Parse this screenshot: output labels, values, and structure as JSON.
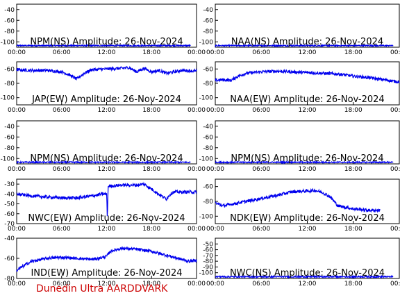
{
  "footer": "Dunedin Ultra AARDDVARK",
  "colors": {
    "trace": "#0000ee",
    "footer": "#cc0000",
    "axis": "#000000"
  },
  "x_ticks": [
    "00:00",
    "06:00",
    "12:00",
    "18:00",
    "00:00"
  ],
  "chart_data": [
    {
      "type": "line",
      "title": "NPM(NS) Amplitude: 26-Nov-2024",
      "xlabel": "",
      "ylabel": "",
      "x_range_hours": [
        0,
        24
      ],
      "ylim": [
        -110,
        -30
      ],
      "y_ticks": [
        -40,
        -60,
        -80,
        -100
      ],
      "grid": false,
      "series": [
        {
          "x_hours": [
            0,
            6,
            12,
            18,
            23.2
          ],
          "values": [
            -107,
            -107,
            -107,
            -107,
            -107
          ]
        }
      ]
    },
    {
      "type": "line",
      "title": "NAA(NS) Amplitude: 26-Nov-2024",
      "xlabel": "",
      "ylabel": "",
      "x_range_hours": [
        0,
        24
      ],
      "ylim": [
        -110,
        -30
      ],
      "y_ticks": [
        -40,
        -60,
        -80,
        -100
      ],
      "grid": false,
      "series": [
        {
          "x_hours": [
            0,
            6,
            12,
            18,
            23.2
          ],
          "values": [
            -107,
            -107,
            -107,
            -107,
            -107
          ]
        }
      ]
    },
    {
      "type": "line",
      "title": "JAP(EW) Amplitude: 26-Nov-2024",
      "xlabel": "",
      "ylabel": "",
      "x_range_hours": [
        0,
        24
      ],
      "ylim": [
        -110,
        -50
      ],
      "y_ticks": [
        -60,
        -80,
        -100
      ],
      "grid": false,
      "series": [
        {
          "x_hours": [
            0,
            2,
            4,
            6,
            7,
            8,
            9,
            10,
            12,
            14,
            15,
            16,
            17,
            18,
            19,
            20,
            22,
            24
          ],
          "values": [
            -61,
            -62,
            -62,
            -64,
            -68,
            -74,
            -66,
            -61,
            -60,
            -59,
            -58,
            -64,
            -59,
            -64,
            -62,
            -66,
            -62,
            -63
          ]
        }
      ]
    },
    {
      "type": "line",
      "title": "NAA(EW) Amplitude: 26-Nov-2024",
      "xlabel": "",
      "ylabel": "",
      "x_range_hours": [
        0,
        24
      ],
      "ylim": [
        -110,
        -50
      ],
      "y_ticks": [
        -60,
        -80,
        -100
      ],
      "grid": false,
      "series": [
        {
          "x_hours": [
            0,
            1,
            2,
            3,
            4,
            6,
            8,
            10,
            12,
            14,
            16,
            18,
            20,
            22,
            24
          ],
          "values": [
            -76,
            -75,
            -76,
            -70,
            -66,
            -64,
            -63,
            -64,
            -65,
            -66,
            -67,
            -70,
            -72,
            -75,
            -78
          ]
        }
      ]
    },
    {
      "type": "line",
      "title": "NPM(NS) Amplitude: 26-Nov-2024",
      "xlabel": "",
      "ylabel": "",
      "x_range_hours": [
        0,
        24
      ],
      "ylim": [
        -110,
        -30
      ],
      "y_ticks": [
        -40,
        -60,
        -80,
        -100
      ],
      "grid": false,
      "series": [
        {
          "x_hours": [
            0,
            6,
            12,
            18,
            23.2
          ],
          "values": [
            -107,
            -107,
            -107,
            -107,
            -107
          ]
        }
      ]
    },
    {
      "type": "line",
      "title": "NPM(NS) Amplitude: 26-Nov-2024",
      "xlabel": "",
      "ylabel": "",
      "x_range_hours": [
        0,
        24
      ],
      "ylim": [
        -110,
        -30
      ],
      "y_ticks": [
        -40,
        -60,
        -80,
        -100
      ],
      "grid": false,
      "series": [
        {
          "x_hours": [
            0,
            6,
            12,
            18,
            23.2
          ],
          "values": [
            -107,
            -107,
            -107,
            -107,
            -107
          ]
        }
      ]
    },
    {
      "type": "line",
      "title": "NWC(EW) Amplitude: 26-Nov-2024",
      "xlabel": "",
      "ylabel": "",
      "x_range_hours": [
        0,
        24
      ],
      "ylim": [
        -70,
        -25
      ],
      "y_ticks": [
        -30,
        -40,
        -50,
        -60,
        -70
      ],
      "grid": false,
      "series": [
        {
          "x_hours": [
            0,
            2,
            4,
            6,
            8,
            10,
            11.5,
            12,
            12.1,
            12.2,
            12.3,
            14,
            16,
            17,
            18,
            19.3,
            20,
            20.5,
            21,
            22,
            24
          ],
          "values": [
            -40,
            -42,
            -43,
            -44,
            -44,
            -42,
            -40,
            -40,
            -65,
            -33,
            -32,
            -31,
            -31,
            -30,
            -35,
            -42,
            -45,
            -40,
            -38,
            -38,
            -38
          ]
        }
      ]
    },
    {
      "type": "line",
      "title": "NDK(EW) Amplitude: 26-Nov-2024",
      "xlabel": "",
      "ylabel": "",
      "x_range_hours": [
        0,
        24
      ],
      "ylim": [
        -110,
        -50
      ],
      "y_ticks": [
        -60,
        -80,
        -100
      ],
      "grid": false,
      "series": [
        {
          "x_hours": [
            0,
            1,
            2,
            3,
            4,
            6,
            8,
            10,
            12,
            13,
            14,
            15,
            16,
            18,
            20,
            21.5
          ],
          "values": [
            -82,
            -86,
            -84,
            -82,
            -80,
            -76,
            -72,
            -67,
            -66,
            -65,
            -68,
            -74,
            -86,
            -90,
            -92,
            -92
          ]
        }
      ]
    },
    {
      "type": "line",
      "title": "IND(EW) Amplitude: 26-Nov-2024",
      "xlabel": "",
      "ylabel": "",
      "x_range_hours": [
        0,
        24
      ],
      "ylim": [
        -80,
        -40
      ],
      "y_ticks": [
        -40,
        -60,
        -80
      ],
      "grid": false,
      "series": [
        {
          "x_hours": [
            0,
            1,
            2,
            4,
            6,
            8,
            10,
            11,
            12,
            12.5,
            14,
            16,
            18,
            20,
            22,
            23,
            24
          ],
          "values": [
            -72,
            -67,
            -63,
            -60,
            -59,
            -60,
            -61,
            -60,
            -58,
            -53,
            -50,
            -51,
            -53,
            -57,
            -61,
            -63,
            -62
          ]
        }
      ]
    },
    {
      "type": "line",
      "title": "NWC(NS) Amplitude: 26-Nov-2024",
      "xlabel": "",
      "ylabel": "",
      "x_range_hours": [
        0,
        24
      ],
      "ylim": [
        -110,
        -40
      ],
      "y_ticks": [
        -50,
        -60,
        -70,
        -80,
        -90,
        -100
      ],
      "grid": false,
      "series": [
        {
          "x_hours": [
            0,
            6,
            12,
            18,
            23.2
          ],
          "values": [
            -107,
            -107,
            -107,
            -107,
            -107
          ]
        }
      ]
    }
  ]
}
